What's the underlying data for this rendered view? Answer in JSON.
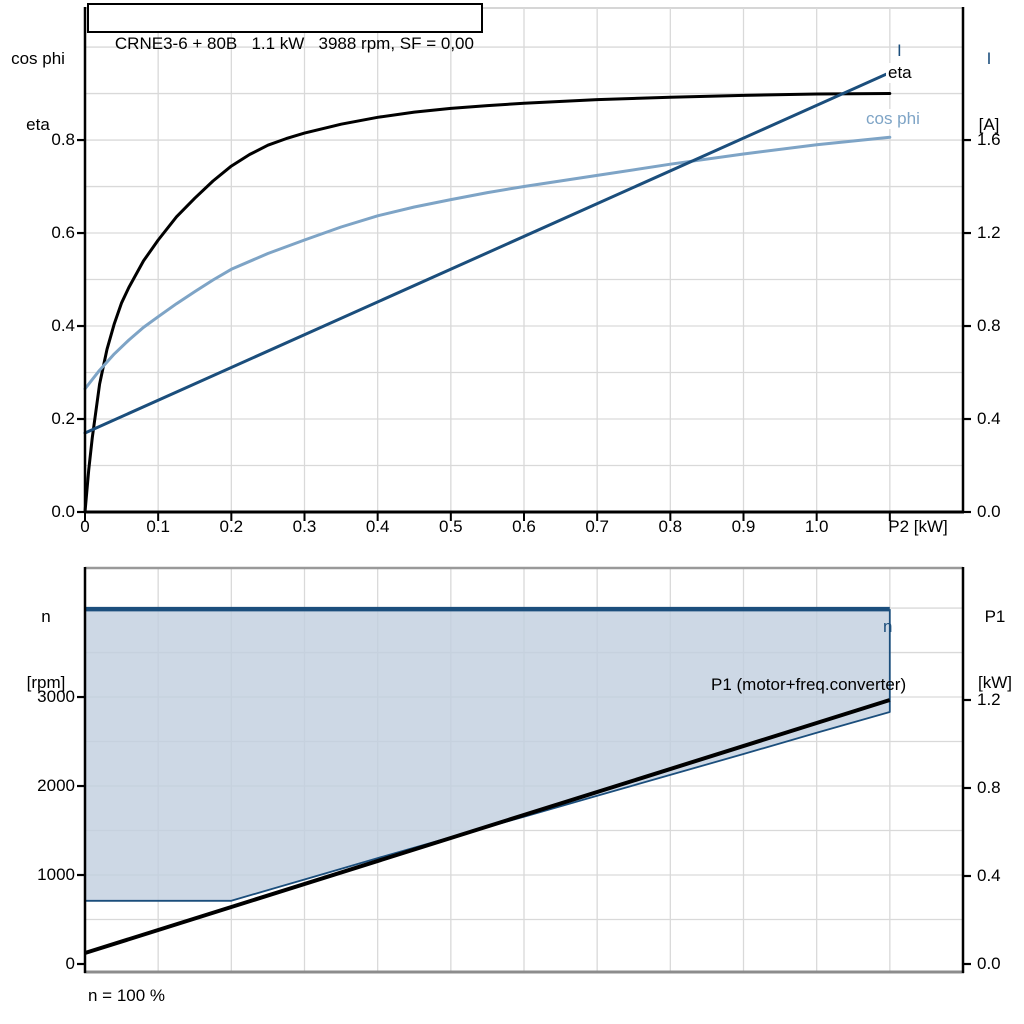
{
  "colors": {
    "dark_blue": "#1b4e7c",
    "light_blue": "#7ea4c6",
    "area_fill": "#c0cede",
    "grid": "#d9d9d9",
    "axis": "#000000",
    "border_gray_top": "#999999",
    "border_gray_bottom": "#8c8c8c",
    "chart1_top_border": "#c8c8c8"
  },
  "header": {
    "title": "CRNE3-6 + 80B   1.1 kW   3988 rpm, SF = 0,00"
  },
  "footer": {
    "note": "n = 100 %"
  },
  "chart_data": [
    {
      "type": "line",
      "xlabel": "P2 [kW]",
      "y_left_title_1": "cos phi",
      "y_left_title_2": "eta",
      "y_right_title_1": "I",
      "y_right_title_2": "[A]",
      "xlim": [
        0,
        1.2
      ],
      "ylim_left": [
        0,
        1.084
      ],
      "ylim_right": [
        0,
        2.168
      ],
      "grid": true,
      "grid_x": [
        0.1,
        0.2,
        0.3,
        0.4,
        0.5,
        0.6,
        0.7,
        0.8,
        0.9,
        1.0,
        1.1
      ],
      "grid_y_left": [
        0.1,
        0.2,
        0.3,
        0.4,
        0.5,
        0.6,
        0.7,
        0.8,
        0.9,
        1.0
      ],
      "x_ticks": [
        {
          "v": 0,
          "label": "0"
        },
        {
          "v": 0.1,
          "label": "0.1"
        },
        {
          "v": 0.2,
          "label": "0.2"
        },
        {
          "v": 0.3,
          "label": "0.3"
        },
        {
          "v": 0.4,
          "label": "0.4"
        },
        {
          "v": 0.5,
          "label": "0.5"
        },
        {
          "v": 0.6,
          "label": "0.6"
        },
        {
          "v": 0.7,
          "label": "0.7"
        },
        {
          "v": 0.8,
          "label": "0.8"
        },
        {
          "v": 0.9,
          "label": "0.9"
        },
        {
          "v": 1.0,
          "label": "1.0"
        },
        {
          "v": 1.1,
          "label": ""
        }
      ],
      "y_ticks_left": [
        {
          "v": 0,
          "label": "0.0"
        },
        {
          "v": 0.2,
          "label": "0.2"
        },
        {
          "v": 0.4,
          "label": "0.4"
        },
        {
          "v": 0.6,
          "label": "0.6"
        },
        {
          "v": 0.8,
          "label": "0.8"
        }
      ],
      "y_ticks_right": [
        {
          "v": 0,
          "label": "0.0"
        },
        {
          "v": 0.4,
          "label": "0.4"
        },
        {
          "v": 0.8,
          "label": "0.8"
        },
        {
          "v": 1.2,
          "label": "1.2"
        },
        {
          "v": 1.6,
          "label": "1.6"
        }
      ],
      "series": [
        {
          "name": "eta",
          "axis": "left",
          "color": "#000000",
          "width": 3,
          "points": [
            [
              0,
              0
            ],
            [
              0.005,
              0.09
            ],
            [
              0.01,
              0.16
            ],
            [
              0.02,
              0.275
            ],
            [
              0.03,
              0.35
            ],
            [
              0.04,
              0.405
            ],
            [
              0.05,
              0.45
            ],
            [
              0.06,
              0.483
            ],
            [
              0.08,
              0.54
            ],
            [
              0.1,
              0.585
            ],
            [
              0.125,
              0.635
            ],
            [
              0.15,
              0.675
            ],
            [
              0.175,
              0.712
            ],
            [
              0.2,
              0.744
            ],
            [
              0.225,
              0.769
            ],
            [
              0.25,
              0.789
            ],
            [
              0.275,
              0.803
            ],
            [
              0.3,
              0.815
            ],
            [
              0.35,
              0.834
            ],
            [
              0.4,
              0.849
            ],
            [
              0.45,
              0.86
            ],
            [
              0.5,
              0.868
            ],
            [
              0.55,
              0.874
            ],
            [
              0.6,
              0.879
            ],
            [
              0.7,
              0.887
            ],
            [
              0.8,
              0.892
            ],
            [
              0.9,
              0.896
            ],
            [
              1.0,
              0.899
            ],
            [
              1.1,
              0.9
            ]
          ]
        },
        {
          "name": "cos phi",
          "axis": "left",
          "color": "#7ea4c6",
          "width": 3,
          "points": [
            [
              0,
              0.265
            ],
            [
              0.02,
              0.305
            ],
            [
              0.04,
              0.34
            ],
            [
              0.06,
              0.37
            ],
            [
              0.08,
              0.397
            ],
            [
              0.1,
              0.42
            ],
            [
              0.125,
              0.448
            ],
            [
              0.15,
              0.474
            ],
            [
              0.175,
              0.499
            ],
            [
              0.2,
              0.522
            ],
            [
              0.25,
              0.556
            ],
            [
              0.3,
              0.585
            ],
            [
              0.35,
              0.613
            ],
            [
              0.4,
              0.637
            ],
            [
              0.45,
              0.656
            ],
            [
              0.5,
              0.672
            ],
            [
              0.55,
              0.687
            ],
            [
              0.6,
              0.7
            ],
            [
              0.7,
              0.724
            ],
            [
              0.8,
              0.748
            ],
            [
              0.9,
              0.77
            ],
            [
              1.0,
              0.79
            ],
            [
              1.1,
              0.806
            ]
          ]
        },
        {
          "name": "I",
          "axis": "right",
          "color": "#1b4e7c",
          "width": 3,
          "points": [
            [
              0,
              0.34
            ],
            [
              1.1,
              1.89
            ]
          ]
        }
      ],
      "curve_labels": {
        "i": "I",
        "eta": "eta",
        "cosphi": "cos phi"
      }
    },
    {
      "type": "line+area",
      "xlabel": "",
      "y_left_title_1": "n",
      "y_left_title_2": "[rpm]",
      "y_right_title_1": "P1",
      "y_right_title_2": "[kW]",
      "xlim": [
        0,
        1.2
      ],
      "ylim_left": [
        0,
        4450
      ],
      "ylim_right": [
        0,
        1.8
      ],
      "grid": true,
      "grid_x": [
        0.1,
        0.2,
        0.3,
        0.4,
        0.5,
        0.6,
        0.7,
        0.8,
        0.9,
        1.0,
        1.1
      ],
      "grid_y_left": [
        500,
        1000,
        1500,
        2000,
        2500,
        3000,
        3500,
        4000
      ],
      "x_ticks": [],
      "y_ticks_left": [
        {
          "v": 0,
          "label": "0"
        },
        {
          "v": 1000,
          "label": "1000"
        },
        {
          "v": 2000,
          "label": "2000"
        },
        {
          "v": 3000,
          "label": "3000"
        }
      ],
      "y_ticks_right": [
        {
          "v": 0,
          "label": "0.0"
        },
        {
          "v": 0.4,
          "label": "0.4"
        },
        {
          "v": 0.8,
          "label": "0.8"
        },
        {
          "v": 1.2,
          "label": "1.2"
        }
      ],
      "series": [
        {
          "name": "n",
          "axis": "left",
          "color": "#1b4e7c",
          "width": 4.5,
          "points": [
            [
              0,
              3988
            ],
            [
              1.1,
              3988
            ]
          ]
        },
        {
          "name": "n min boundary",
          "axis": "left",
          "color": "#1b4e7c",
          "width": 1.8,
          "points": [
            [
              0,
              710
            ],
            [
              0.2,
              710
            ],
            [
              0.25,
              830
            ],
            [
              0.3,
              950
            ],
            [
              0.4,
              1190
            ],
            [
              0.5,
              1425
            ],
            [
              0.6,
              1655
            ],
            [
              0.7,
              1890
            ],
            [
              0.8,
              2125
            ],
            [
              0.9,
              2360
            ],
            [
              1.0,
              2598
            ],
            [
              1.1,
              2832
            ],
            [
              1.1,
              3988
            ]
          ]
        },
        {
          "name": "P1 (motor+freq.converter)",
          "axis": "right",
          "color": "#000000",
          "width": 4,
          "points": [
            [
              0,
              0.05
            ],
            [
              1.1,
              1.2
            ]
          ]
        }
      ],
      "area": {
        "boundary_series": 1,
        "top_value": 3988,
        "fill": "#c0cede",
        "opacity": 0.8
      },
      "curve_labels": {
        "n": "n",
        "p1": "P1 (motor+freq.converter)"
      }
    }
  ]
}
